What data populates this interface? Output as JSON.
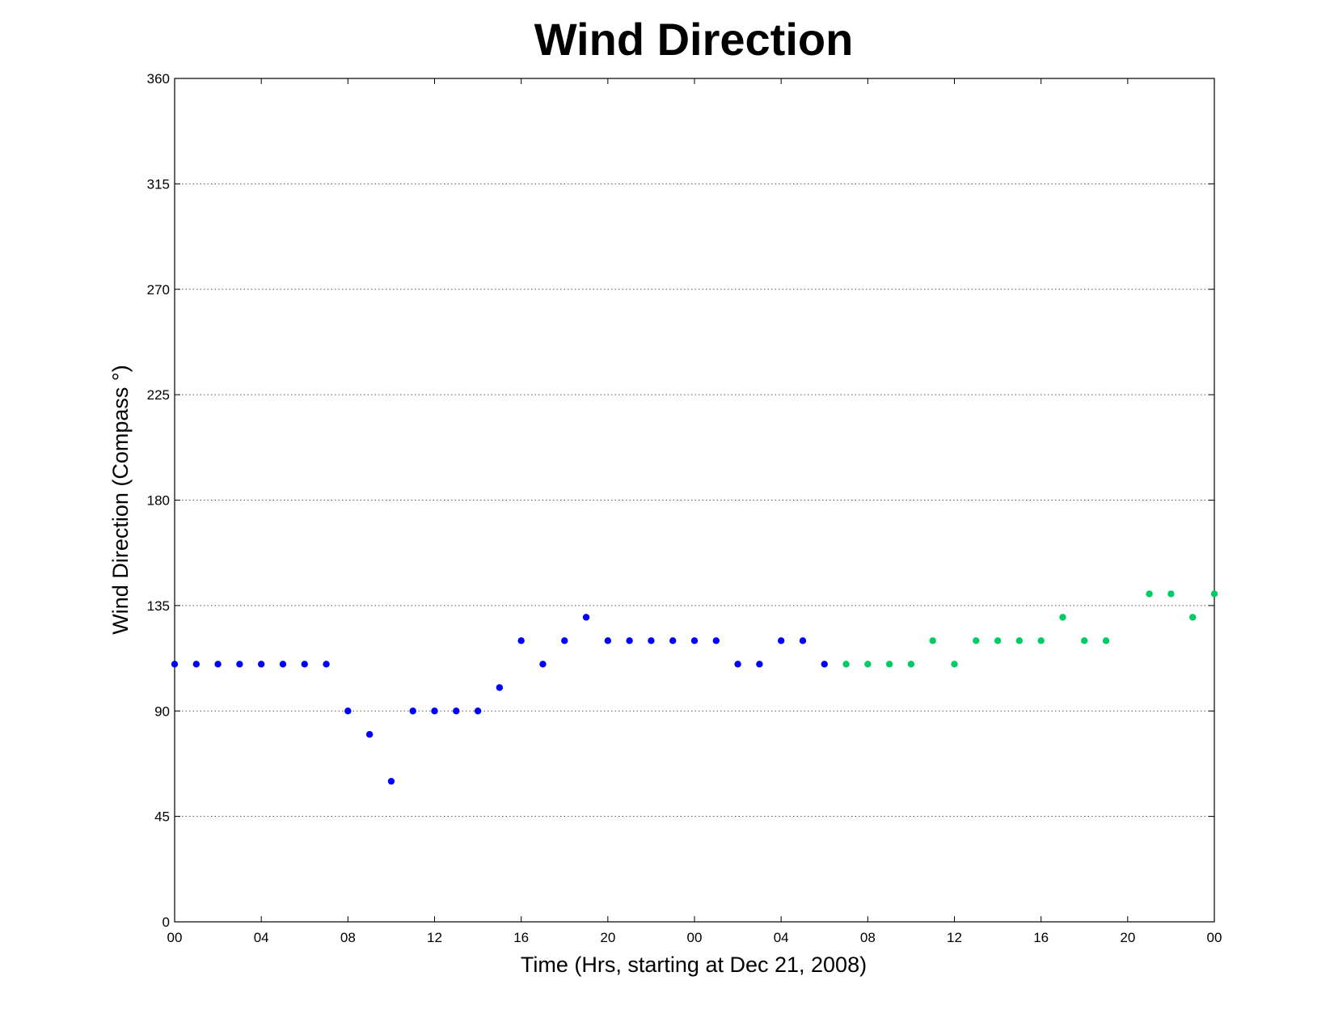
{
  "chart_data": {
    "type": "scatter",
    "title": "Wind Direction",
    "xlabel": "Time (Hrs, starting at Dec 21, 2008)",
    "ylabel": "Wind Direction (Compass  °)",
    "xlim": [
      0,
      48
    ],
    "ylim": [
      0,
      360
    ],
    "grid": "horizontal",
    "x_ticks": [
      0,
      4,
      8,
      12,
      16,
      20,
      24,
      28,
      32,
      36,
      40,
      44,
      48
    ],
    "x_tick_labels": [
      "00",
      "04",
      "08",
      "12",
      "16",
      "20",
      "00",
      "04",
      "08",
      "12",
      "16",
      "20",
      "00"
    ],
    "y_ticks": [
      0,
      45,
      90,
      135,
      180,
      225,
      270,
      315,
      360
    ],
    "y_tick_labels": [
      "0",
      "45",
      "90",
      "135",
      "180",
      "225",
      "270",
      "315",
      "360"
    ],
    "series": [
      {
        "color": "#0000ff",
        "x": [
          0,
          1,
          2,
          3,
          4,
          5,
          6,
          7,
          8,
          9,
          10,
          11,
          12,
          13,
          14,
          15,
          16,
          17,
          18,
          19,
          20,
          21,
          22,
          23,
          24,
          25,
          26,
          27,
          28,
          29,
          30
        ],
        "y": [
          110,
          110,
          110,
          110,
          110,
          110,
          110,
          110,
          90,
          80,
          60,
          90,
          90,
          90,
          90,
          100,
          120,
          110,
          120,
          130,
          120,
          120,
          120,
          120,
          120,
          120,
          110,
          110,
          120,
          120,
          110
        ]
      },
      {
        "color": "#00cc66",
        "x": [
          31,
          32,
          33,
          34,
          35,
          36,
          37,
          38,
          39,
          40,
          41,
          42,
          43,
          45,
          46,
          47,
          48
        ],
        "y": [
          110,
          110,
          110,
          110,
          120,
          110,
          120,
          120,
          120,
          120,
          130,
          120,
          120,
          140,
          140,
          130,
          140
        ]
      }
    ]
  }
}
